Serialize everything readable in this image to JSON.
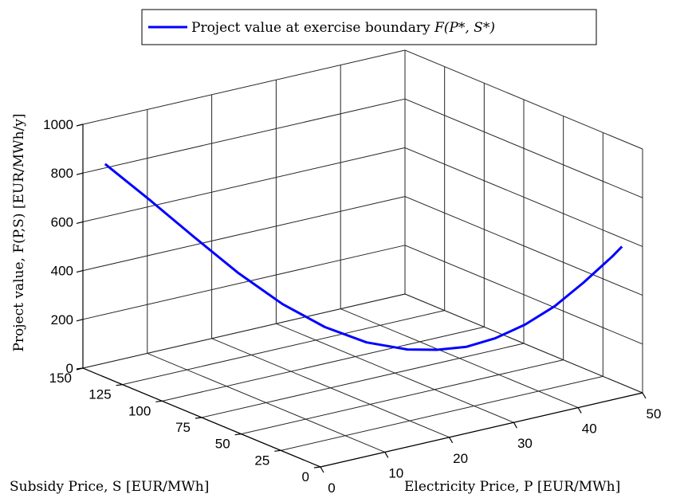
{
  "chart_data": {
    "type": "line",
    "view": "3d",
    "legend": {
      "label_text": "Project value at exercise boundary ",
      "label_math": "F(P*, S*)",
      "position": "top-center"
    },
    "xlabel": "Electricity Price, P [EUR/MWh]",
    "ylabel": "Subsidy Price, S [EUR/MWh]",
    "zlabel": "Project value, F(P,S) [EUR/MWh/y]",
    "xlim": [
      0,
      50
    ],
    "ylim": [
      0,
      150
    ],
    "zlim": [
      0,
      1000
    ],
    "x_ticks": [
      "0",
      "10",
      "20",
      "30",
      "40",
      "50"
    ],
    "y_ticks": [
      "0",
      "25",
      "50",
      "75",
      "100",
      "125",
      "150"
    ],
    "z_ticks": [
      "0",
      "200",
      "400",
      "600",
      "800",
      "1000"
    ],
    "grid": true,
    "series": [
      {
        "color": "#0000ff",
        "points": [
          {
            "p": 0.0,
            "s": 136.0,
            "f": 875
          },
          {
            "p": 4.0,
            "s": 124.0,
            "f": 735
          },
          {
            "p": 8.0,
            "s": 112.0,
            "f": 590
          },
          {
            "p": 12.0,
            "s": 100.5,
            "f": 450
          },
          {
            "p": 16.0,
            "s": 89.0,
            "f": 330
          },
          {
            "p": 20.0,
            "s": 78.5,
            "f": 240
          },
          {
            "p": 24.0,
            "s": 68.5,
            "f": 180
          },
          {
            "p": 28.0,
            "s": 59.0,
            "f": 152
          },
          {
            "p": 31.0,
            "s": 52.5,
            "f": 150
          },
          {
            "p": 34.0,
            "s": 46.0,
            "f": 162
          },
          {
            "p": 37.0,
            "s": 40.0,
            "f": 195
          },
          {
            "p": 40.0,
            "s": 33.5,
            "f": 250
          },
          {
            "p": 43.0,
            "s": 27.0,
            "f": 325
          },
          {
            "p": 46.0,
            "s": 21.0,
            "f": 420
          },
          {
            "p": 49.0,
            "s": 15.0,
            "f": 525
          },
          {
            "p": 50.0,
            "s": 13.0,
            "f": 565
          }
        ]
      }
    ]
  }
}
